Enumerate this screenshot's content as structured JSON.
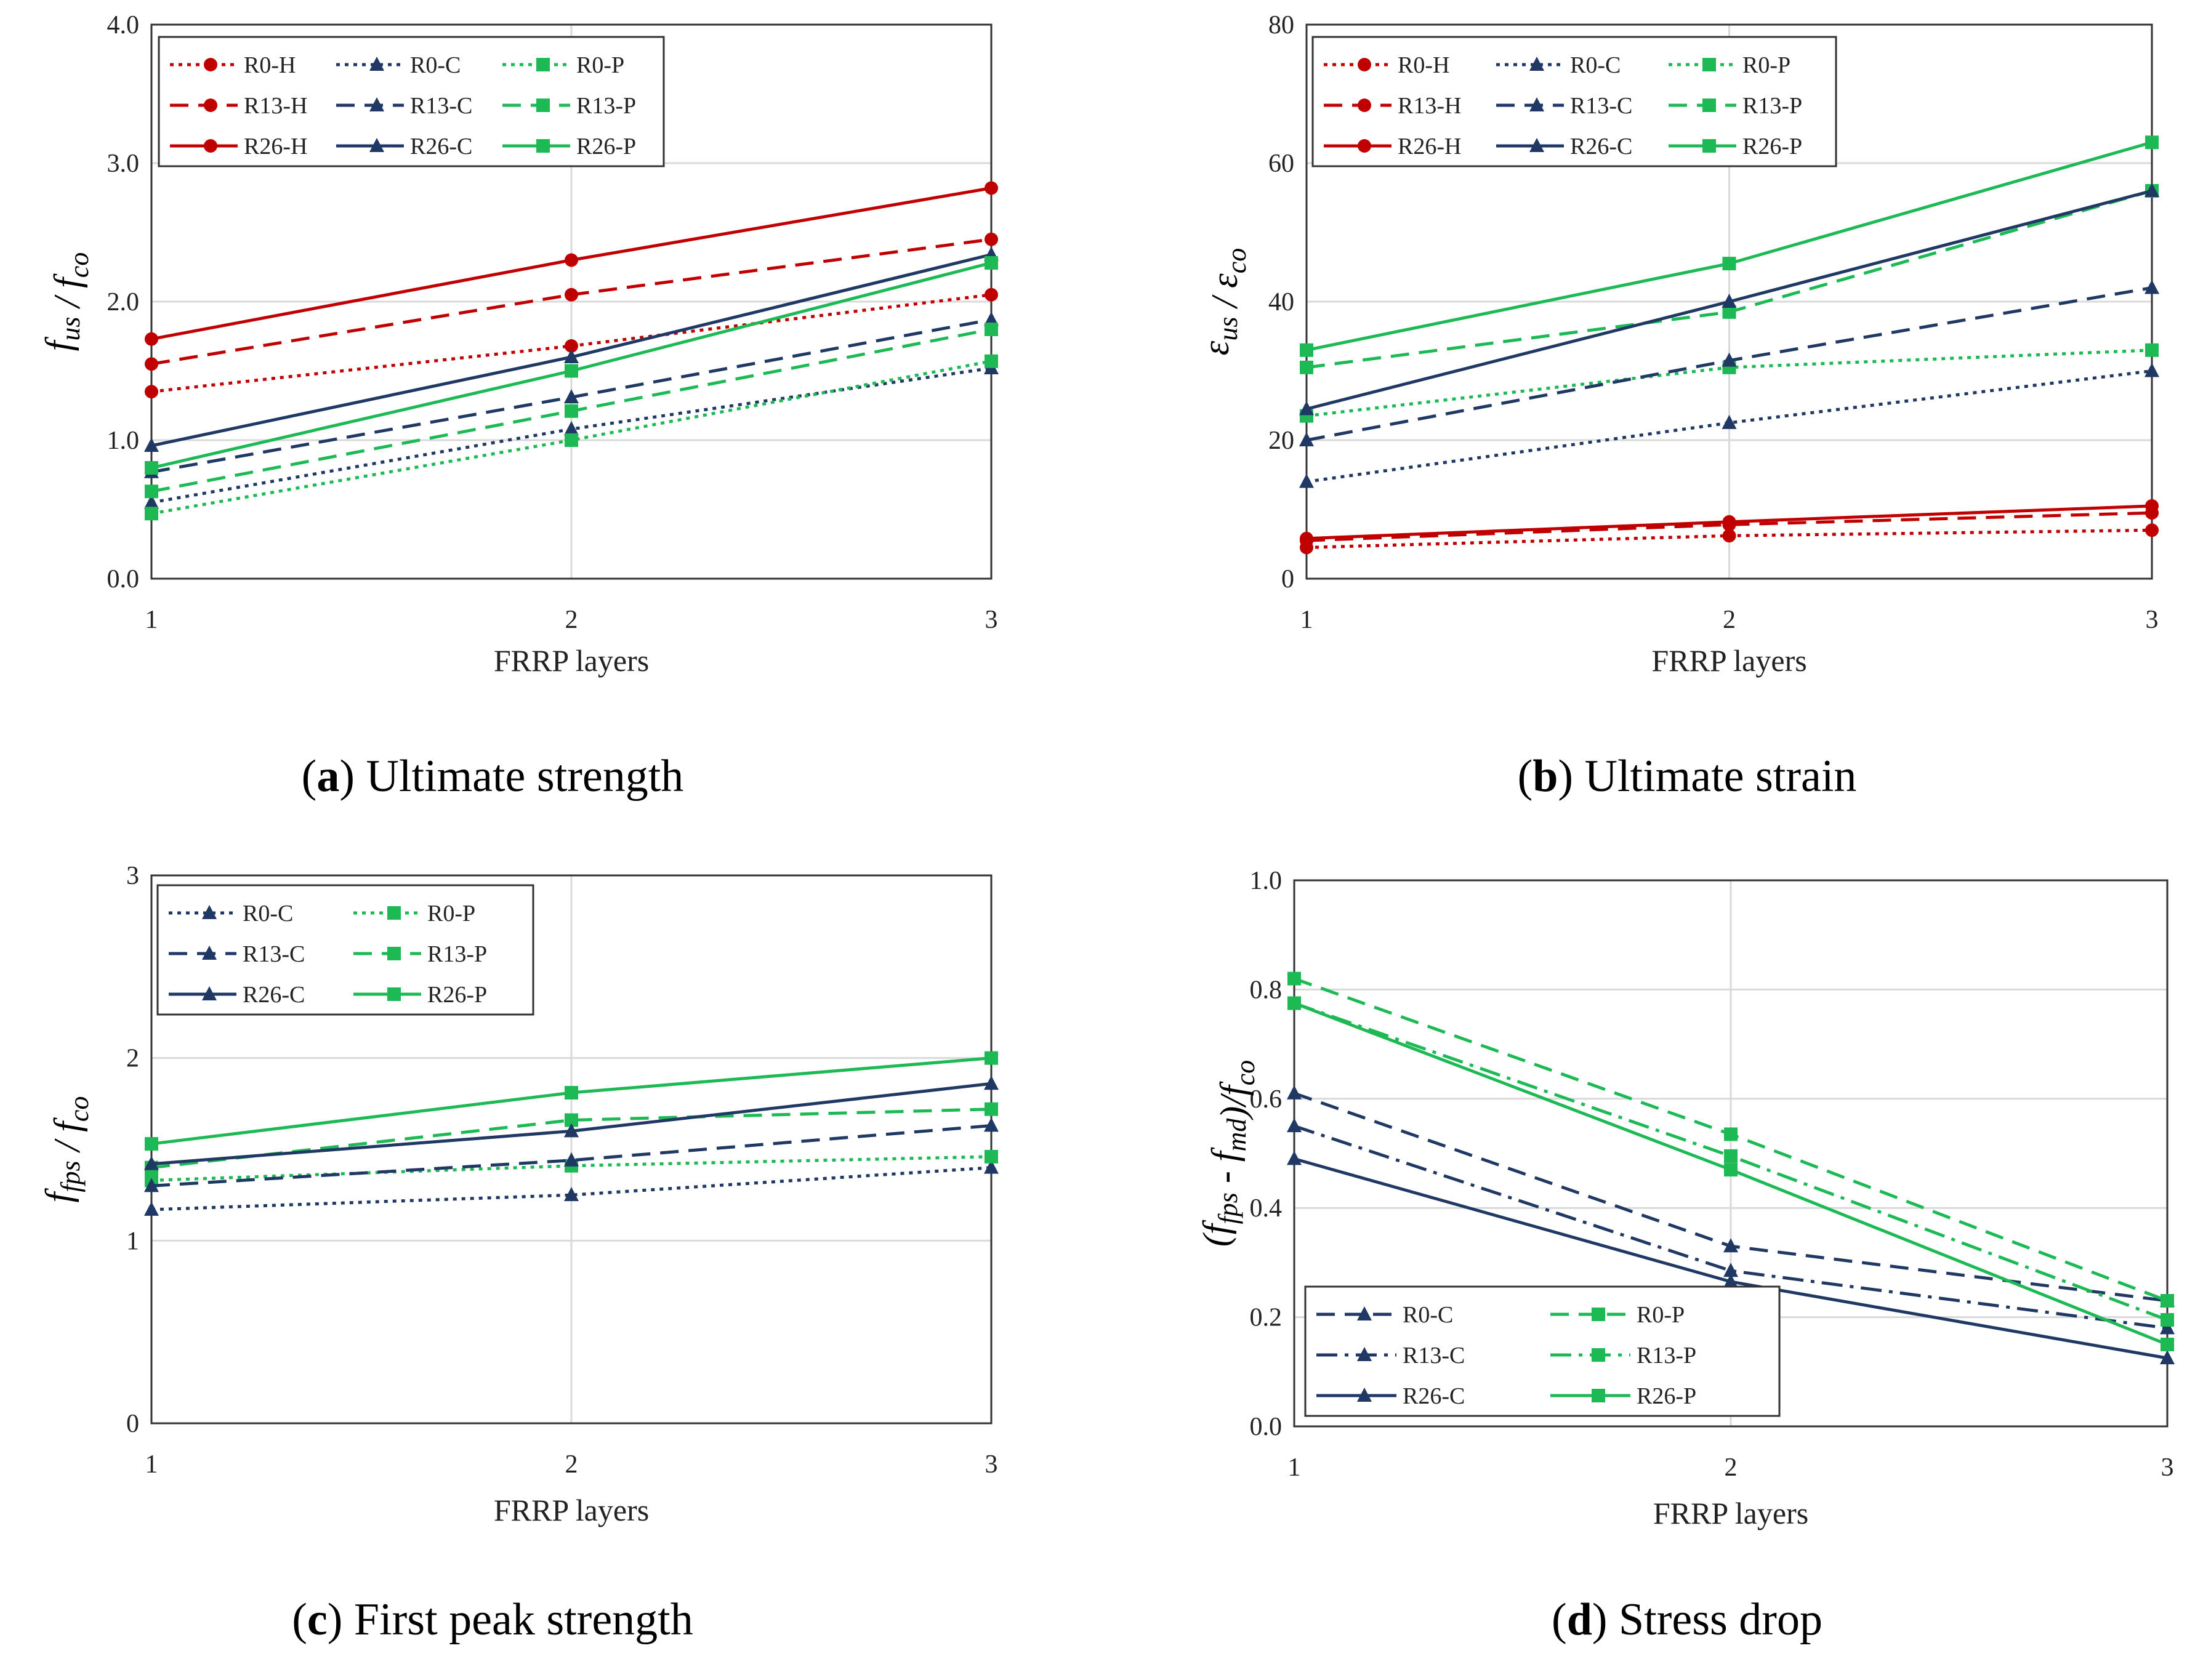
{
  "colors": {
    "H": "#C00000",
    "C": "#1F3864",
    "P": "#1DB954"
  },
  "chart_data": [
    {
      "type": "line",
      "caption": {
        "letter": "(a)",
        "text": "Ultimate strength"
      },
      "title": "",
      "xlabel": "FRRP layers",
      "ylabel": {
        "main": "f",
        "sub1": "us",
        "sep": " / ",
        "main2": "f",
        "sub2": "co"
      },
      "x": [
        1,
        2,
        3
      ],
      "xticks": [
        "1",
        "2",
        "3"
      ],
      "ylim": [
        0,
        4
      ],
      "yticks": [
        "0.0",
        "1.0",
        "2.0",
        "3.0",
        "4.0"
      ],
      "legend_columns": 3,
      "series": [
        {
          "name": "R0-H",
          "group": "H",
          "style": "dot",
          "marker": "circle",
          "values": [
            1.35,
            1.68,
            2.05
          ]
        },
        {
          "name": "R0-C",
          "group": "C",
          "style": "dot",
          "marker": "triangle",
          "values": [
            0.55,
            1.08,
            1.52
          ]
        },
        {
          "name": "R0-P",
          "group": "P",
          "style": "dot",
          "marker": "square",
          "values": [
            0.47,
            1.0,
            1.57
          ]
        },
        {
          "name": "R13-H",
          "group": "H",
          "style": "dash",
          "marker": "circle",
          "values": [
            1.55,
            2.05,
            2.45
          ]
        },
        {
          "name": "R13-C",
          "group": "C",
          "style": "dash",
          "marker": "triangle",
          "values": [
            0.77,
            1.31,
            1.87
          ]
        },
        {
          "name": "R13-P",
          "group": "P",
          "style": "dash",
          "marker": "square",
          "values": [
            0.63,
            1.21,
            1.8
          ]
        },
        {
          "name": "R26-H",
          "group": "H",
          "style": "solid",
          "marker": "circle",
          "values": [
            1.73,
            2.3,
            2.82
          ]
        },
        {
          "name": "R26-C",
          "group": "C",
          "style": "solid",
          "marker": "triangle",
          "values": [
            0.96,
            1.6,
            2.34
          ]
        },
        {
          "name": "R26-P",
          "group": "P",
          "style": "solid",
          "marker": "square",
          "values": [
            0.8,
            1.5,
            2.28
          ]
        }
      ]
    },
    {
      "type": "line",
      "caption": {
        "letter": "(b)",
        "text": "Ultimate strain"
      },
      "title": "",
      "xlabel": "FRRP layers",
      "ylabel": {
        "main": "ε",
        "sub1": "us",
        "sep": " / ",
        "main2": "ε",
        "sub2": "co"
      },
      "x": [
        1,
        2,
        3
      ],
      "xticks": [
        "1",
        "2",
        "3"
      ],
      "ylim": [
        0,
        80
      ],
      "yticks": [
        "0",
        "20",
        "40",
        "60",
        "80"
      ],
      "legend_columns": 3,
      "series": [
        {
          "name": "R0-H",
          "group": "H",
          "style": "dot",
          "marker": "circle",
          "values": [
            4.5,
            6.2,
            7.0
          ]
        },
        {
          "name": "R0-C",
          "group": "C",
          "style": "dot",
          "marker": "triangle",
          "values": [
            14.0,
            22.5,
            30.0
          ]
        },
        {
          "name": "R0-P",
          "group": "P",
          "style": "dot",
          "marker": "square",
          "values": [
            23.5,
            30.5,
            33.0
          ]
        },
        {
          "name": "R13-H",
          "group": "H",
          "style": "dash",
          "marker": "circle",
          "values": [
            5.5,
            7.8,
            9.5
          ]
        },
        {
          "name": "R13-C",
          "group": "C",
          "style": "dash",
          "marker": "triangle",
          "values": [
            20.0,
            31.5,
            42.0
          ]
        },
        {
          "name": "R13-P",
          "group": "P",
          "style": "dash",
          "marker": "square",
          "values": [
            30.5,
            38.5,
            56.0
          ]
        },
        {
          "name": "R26-H",
          "group": "H",
          "style": "solid",
          "marker": "circle",
          "values": [
            5.8,
            8.2,
            10.5
          ]
        },
        {
          "name": "R26-C",
          "group": "C",
          "style": "solid",
          "marker": "triangle",
          "values": [
            24.5,
            40.0,
            56.0
          ]
        },
        {
          "name": "R26-P",
          "group": "P",
          "style": "solid",
          "marker": "square",
          "values": [
            33.0,
            45.5,
            63.0
          ]
        }
      ]
    },
    {
      "type": "line",
      "caption": {
        "letter": "(c)",
        "text": "First peak strength"
      },
      "title": "",
      "xlabel": "FRRP layers",
      "ylabel": {
        "main": "f",
        "sub1": "fps",
        "sep": " / ",
        "main2": "f",
        "sub2": "co"
      },
      "x": [
        1,
        2,
        3
      ],
      "xticks": [
        "1",
        "2",
        "3"
      ],
      "ylim": [
        0,
        3
      ],
      "yticks": [
        "0",
        "1",
        "2",
        "3"
      ],
      "legend_columns": 2,
      "series": [
        {
          "name": "R0-C",
          "group": "C",
          "style": "dot",
          "marker": "triangle",
          "values": [
            1.17,
            1.25,
            1.4
          ]
        },
        {
          "name": "R0-P",
          "group": "P",
          "style": "dot",
          "marker": "square",
          "values": [
            1.33,
            1.41,
            1.46
          ]
        },
        {
          "name": "R13-C",
          "group": "C",
          "style": "dash",
          "marker": "triangle",
          "values": [
            1.3,
            1.44,
            1.63
          ]
        },
        {
          "name": "R13-P",
          "group": "P",
          "style": "dash",
          "marker": "square",
          "values": [
            1.4,
            1.66,
            1.72
          ]
        },
        {
          "name": "R26-C",
          "group": "C",
          "style": "solid",
          "marker": "triangle",
          "values": [
            1.42,
            1.6,
            1.86
          ]
        },
        {
          "name": "R26-P",
          "group": "P",
          "style": "solid",
          "marker": "square",
          "values": [
            1.53,
            1.81,
            2.0
          ]
        }
      ]
    },
    {
      "type": "line",
      "caption": {
        "letter": "(d)",
        "text": "Stress drop"
      },
      "title": "",
      "xlabel": "FRRP layers",
      "ylabel": {
        "text": "(f",
        "sub1": "fps",
        "mid": " - f",
        "sub2": "md",
        "end": ")/f",
        "sub3": "co"
      },
      "x": [
        1,
        2,
        3
      ],
      "xticks": [
        "1",
        "2",
        "3"
      ],
      "ylim": [
        0,
        1
      ],
      "yticks": [
        "0.0",
        "0.2",
        "0.4",
        "0.6",
        "0.8",
        "1.0"
      ],
      "legend_columns": 2,
      "series": [
        {
          "name": "R0-C",
          "group": "C",
          "style": "dash",
          "marker": "triangle",
          "values": [
            0.61,
            0.33,
            0.23
          ]
        },
        {
          "name": "R0-P",
          "group": "P",
          "style": "dash",
          "marker": "square",
          "values": [
            0.82,
            0.535,
            0.23
          ]
        },
        {
          "name": "R13-C",
          "group": "C",
          "style": "dashdot",
          "marker": "triangle",
          "values": [
            0.55,
            0.285,
            0.18
          ]
        },
        {
          "name": "R13-P",
          "group": "P",
          "style": "dashdot",
          "marker": "square",
          "values": [
            0.775,
            0.495,
            0.195
          ]
        },
        {
          "name": "R26-C",
          "group": "C",
          "style": "solid",
          "marker": "triangle",
          "values": [
            0.49,
            0.265,
            0.125
          ]
        },
        {
          "name": "R26-P",
          "group": "P",
          "style": "solid",
          "marker": "square",
          "values": [
            0.775,
            0.47,
            0.15
          ]
        }
      ]
    }
  ]
}
